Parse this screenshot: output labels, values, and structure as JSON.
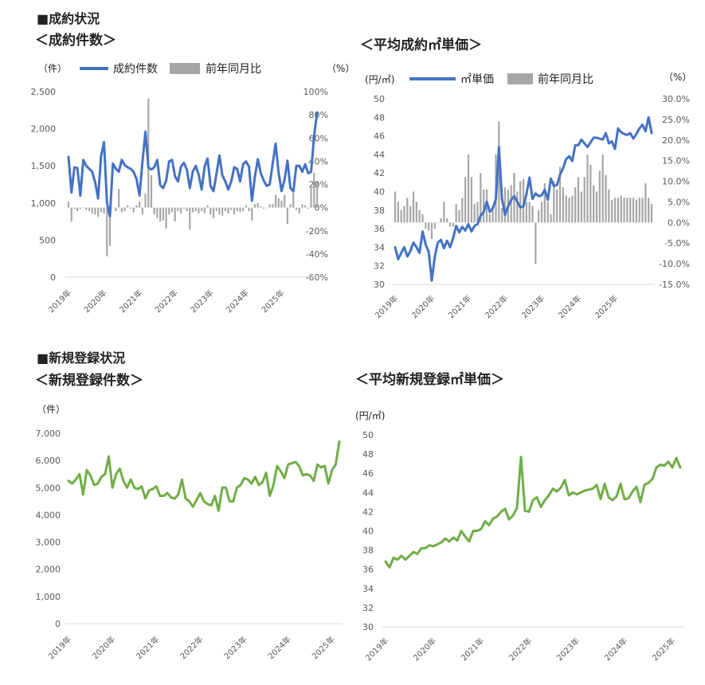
{
  "sections": [
    {
      "title": "■成約状況"
    },
    {
      "title": "■新規登録状況"
    }
  ],
  "colors": {
    "blue": "#4472C4",
    "bar": "#A6A6A6",
    "green": "#70AD47",
    "axis": "#D9D9D9",
    "text": "#595959"
  },
  "chart_data": [
    {
      "type": "line+bar",
      "title": "＜成約件数＞",
      "y_left_unit": "（件）",
      "y_right_unit": "（%）",
      "ylim_left": [
        0,
        2500
      ],
      "ylim_right": [
        -60,
        100
      ],
      "y_left_ticks": [
        "0",
        "500",
        "1,000",
        "1,500",
        "2,000",
        "2,500"
      ],
      "y_right_ticks": [
        "-60%",
        "-40%",
        "-20%",
        "0%",
        "20%",
        "40%",
        "60%",
        "80%",
        "100%"
      ],
      "x_ticks": [
        "2019年",
        "2020年",
        "2021年",
        "2022年",
        "2023年",
        "2024年",
        "2025年"
      ],
      "x_start": "2019-01",
      "x_end": "2025-05",
      "series": [
        {
          "name": "成約件数",
          "kind": "line",
          "axis": "left",
          "values": [
            1620,
            1140,
            1480,
            1470,
            1100,
            1580,
            1500,
            1460,
            1420,
            1280,
            1060,
            1630,
            1820,
            1000,
            820,
            1530,
            1460,
            1420,
            1580,
            1510,
            1480,
            1460,
            1420,
            1320,
            1100,
            1560,
            1960,
            1480,
            1450,
            1480,
            1580,
            1240,
            1200,
            1300,
            1560,
            1580,
            1360,
            1290,
            1490,
            1540,
            1450,
            1200,
            1420,
            1500,
            1380,
            1180,
            1490,
            1600,
            1230,
            1160,
            1390,
            1640,
            1370,
            1290,
            1180,
            1290,
            1480,
            1460,
            1290,
            1520,
            1560,
            1490,
            1030,
            1360,
            1590,
            1400,
            1300,
            1230,
            1250,
            1530,
            1800,
            1410,
            1160,
            1310,
            1570,
            1200,
            1160,
            1500,
            1500,
            1420,
            1520,
            1400,
            1420,
            1900,
            2220
          ]
        },
        {
          "name": "前年同月比",
          "kind": "bar",
          "axis": "right",
          "values": [
            5,
            -12,
            -1,
            -3,
            -1,
            0,
            -2,
            -3,
            -5,
            -6,
            -8,
            -4,
            -5,
            -42,
            -33,
            0,
            -3,
            16,
            -4,
            -3,
            2,
            -1,
            -4,
            2,
            5,
            -6,
            12,
            94,
            28,
            -6,
            -9,
            -12,
            -11,
            -18,
            -6,
            -4,
            -12,
            -3,
            -5,
            -1,
            -3,
            -19,
            -4,
            -3,
            -5,
            -3,
            -5,
            2,
            -6,
            -9,
            -3,
            -6,
            -7,
            -3,
            -5,
            -2,
            -6,
            -3,
            -4,
            -3,
            2,
            -3,
            -11,
            3,
            4,
            1,
            -1,
            0,
            3,
            3,
            11,
            8,
            6,
            11,
            -14,
            3,
            13,
            -2,
            -5,
            3,
            2,
            -1,
            18,
            30,
            22
          ]
        }
      ]
    },
    {
      "type": "line+bar",
      "title": "＜平均成約㎡単価＞",
      "y_left_unit": "(円/㎡)",
      "y_right_unit": "（%）",
      "ylim_left": [
        30,
        50
      ],
      "ylim_right": [
        -15,
        30
      ],
      "y_left_ticks": [
        "30",
        "32",
        "34",
        "36",
        "38",
        "40",
        "42",
        "44",
        "46",
        "48",
        "50"
      ],
      "y_right_ticks": [
        "-15.0%",
        "-10.0%",
        "-5.0%",
        "0.0%",
        "5.0%",
        "10.0%",
        "15.0%",
        "20.0%",
        "25.0%",
        "30.0%"
      ],
      "x_ticks": [
        "2019年",
        "2020年",
        "2021年",
        "2022年",
        "2023年",
        "2024年",
        "2025年"
      ],
      "x_start": "2019-01",
      "x_end": "2025-05",
      "series": [
        {
          "name": "㎡単価",
          "kind": "line",
          "axis": "left",
          "values": [
            34.0,
            32.7,
            33.4,
            34.0,
            33.0,
            33.6,
            34.5,
            34.0,
            33.4,
            35.7,
            34.3,
            33.5,
            30.4,
            33.0,
            34.5,
            34.8,
            33.9,
            34.7,
            34.0,
            35.0,
            36.3,
            35.6,
            36.2,
            35.8,
            36.5,
            35.7,
            36.3,
            36.5,
            37.4,
            37.8,
            38.9,
            37.8,
            38.2,
            39.2,
            44.8,
            39.2,
            37.5,
            38.4,
            39.1,
            39.5,
            38.9,
            38.3,
            38.4,
            39.7,
            41.5,
            39.2,
            39.8,
            39.5,
            39.6,
            40.2,
            39.1,
            41.4,
            40.6,
            40.7,
            41.8,
            42.5,
            43.5,
            43.8,
            43.3,
            45.0,
            45.0,
            45.6,
            45.2,
            44.8,
            45.3,
            45.8,
            45.8,
            45.7,
            45.6,
            46.3,
            45.2,
            45.4,
            44.6,
            46.8,
            46.4,
            46.2,
            46.1,
            46.3,
            45.7,
            46.2,
            46.8,
            47.2,
            46.5,
            48.0,
            46.3
          ]
        },
        {
          "name": "前年同月比",
          "kind": "bar",
          "axis": "right",
          "values": [
            7.5,
            5.0,
            3.0,
            4.0,
            6.0,
            4.0,
            7.5,
            5.0,
            3.0,
            2.0,
            -1.5,
            -2.0,
            -4.0,
            -1.5,
            0.0,
            1.0,
            5.0,
            1.0,
            -1.0,
            -1.0,
            4.5,
            3.0,
            6.0,
            11.0,
            16.5,
            11.0,
            4.5,
            5.0,
            12.0,
            8.0,
            8.0,
            2.0,
            3.0,
            16.5,
            24.5,
            3.5,
            8.5,
            8.0,
            9.0,
            12.0,
            7.5,
            10.0,
            10.5,
            5.0,
            5.0,
            4.0,
            -10.0,
            3.0,
            5.0,
            9.5,
            5.0,
            2.0,
            10.0,
            8.0,
            13.5,
            8.5,
            6.5,
            6.0,
            6.5,
            8.5,
            11.0,
            7.5,
            11.0,
            16.5,
            14.0,
            9.0,
            7.5,
            12.5,
            16.5,
            11.5,
            8.0,
            5.5,
            6.0,
            6.0,
            6.5,
            6.0,
            6.0,
            6.0,
            6.0,
            5.5,
            6.0,
            6.0,
            9.5,
            6.0,
            4.5
          ]
        }
      ]
    },
    {
      "type": "line",
      "title": "＜新規登録件数＞",
      "y_left_unit": "（件）",
      "ylim_left": [
        0,
        7000
      ],
      "y_left_ticks": [
        "0",
        "1,000",
        "2,000",
        "3,000",
        "4,000",
        "5,000",
        "6,000",
        "7,000"
      ],
      "x_ticks": [
        "2019年",
        "2020年",
        "2021年",
        "2022年",
        "2023年",
        "2024年",
        "2025年"
      ],
      "x_start": "2019-01",
      "x_end": "2025-05",
      "series": [
        {
          "name": "新規登録件数",
          "kind": "line",
          "axis": "left",
          "values": [
            5250,
            5150,
            5300,
            5500,
            4750,
            5650,
            5450,
            5100,
            5150,
            5400,
            5500,
            6150,
            5000,
            5500,
            5700,
            5250,
            5000,
            5300,
            5000,
            4950,
            5050,
            4600,
            4900,
            4950,
            5050,
            4700,
            4700,
            4800,
            4650,
            4600,
            4750,
            5300,
            4600,
            4500,
            4300,
            4550,
            4800,
            4500,
            4400,
            4350,
            4700,
            4150,
            5000,
            5000,
            4500,
            4500,
            5000,
            5100,
            5350,
            5300,
            5150,
            5400,
            5100,
            5200,
            5550,
            4700,
            5100,
            5800,
            5600,
            5350,
            5850,
            5900,
            5950,
            5800,
            5450,
            5500,
            5450,
            5250,
            5850,
            5750,
            5800,
            5150,
            5650,
            5850,
            6700
          ]
        }
      ]
    },
    {
      "type": "line",
      "title": "＜平均新規登録㎡単価＞",
      "y_left_unit": "(円/㎡)",
      "ylim_left": [
        30,
        50
      ],
      "y_left_ticks": [
        "30",
        "32",
        "34",
        "36",
        "38",
        "40",
        "42",
        "44",
        "46",
        "48",
        "50"
      ],
      "x_ticks": [
        "2019年",
        "2020年",
        "2021年",
        "2022年",
        "2023年",
        "2024年",
        "2025年"
      ],
      "x_start": "2019-01",
      "x_end": "2025-05",
      "series": [
        {
          "name": "平均新規登録㎡単価",
          "kind": "line",
          "axis": "left",
          "values": [
            36.8,
            36.2,
            37.2,
            37.0,
            37.4,
            37.0,
            37.4,
            37.8,
            37.6,
            38.2,
            38.2,
            38.5,
            38.4,
            38.6,
            38.8,
            39.2,
            38.9,
            39.3,
            39.0,
            40.0,
            39.4,
            38.9,
            40.0,
            40.0,
            40.2,
            41.0,
            40.6,
            41.3,
            41.5,
            42.0,
            42.3,
            41.2,
            41.6,
            42.4,
            47.7,
            42.1,
            42.0,
            43.2,
            43.5,
            42.5,
            43.2,
            43.7,
            44.4,
            44.1,
            44.5,
            45.3,
            43.7,
            44.0,
            43.8,
            44.0,
            44.2,
            44.3,
            44.4,
            44.8,
            43.3,
            44.9,
            43.5,
            43.2,
            43.6,
            44.9,
            43.3,
            43.4,
            44.1,
            44.6,
            43.0,
            44.8,
            45.0,
            45.4,
            46.6,
            46.9,
            46.8,
            47.2,
            46.6,
            47.6,
            46.6
          ]
        }
      ]
    }
  ]
}
